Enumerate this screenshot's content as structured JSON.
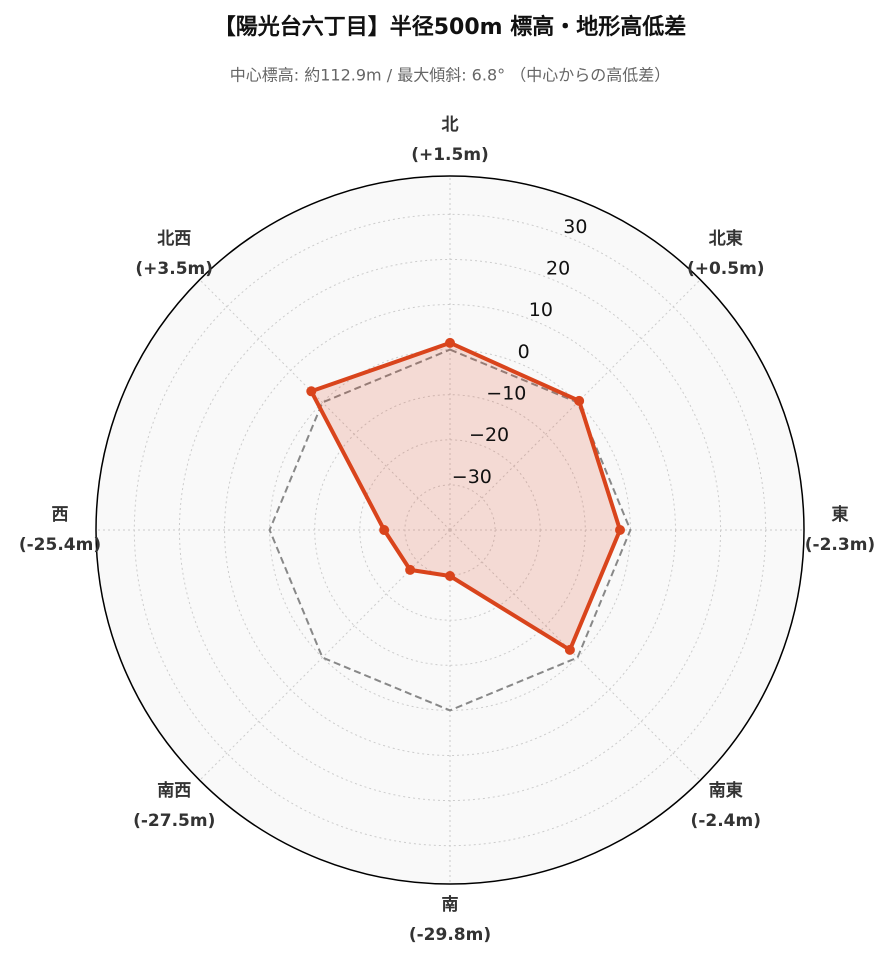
{
  "chart_data": {
    "type": "radar",
    "title": "【陽光台六丁目】半径500m 標高・地形高低差",
    "subtitle": "中心標高: 約112.9m / 最大傾斜: 6.8° （中心からの高低差）",
    "categories": [
      "北",
      "北東",
      "東",
      "南東",
      "南",
      "南西",
      "西",
      "北西"
    ],
    "values": [
      1.5,
      0.5,
      -2.3,
      -2.4,
      -29.8,
      -27.5,
      -25.4,
      3.5
    ],
    "value_labels": [
      "(+1.5m)",
      "(+0.5m)",
      "(-2.3m)",
      "(-2.4m)",
      "(-29.8m)",
      "(-27.5m)",
      "(-25.4m)",
      "(+3.5m)"
    ],
    "color": "#d9441c",
    "baseline": 0,
    "rlim": [
      -40,
      38.5
    ],
    "rticks": [
      {
        "value": -30,
        "label": "−30"
      },
      {
        "value": -20,
        "label": "−20"
      },
      {
        "value": -10,
        "label": "−10"
      },
      0,
      10,
      20,
      30
    ],
    "grid": true
  }
}
